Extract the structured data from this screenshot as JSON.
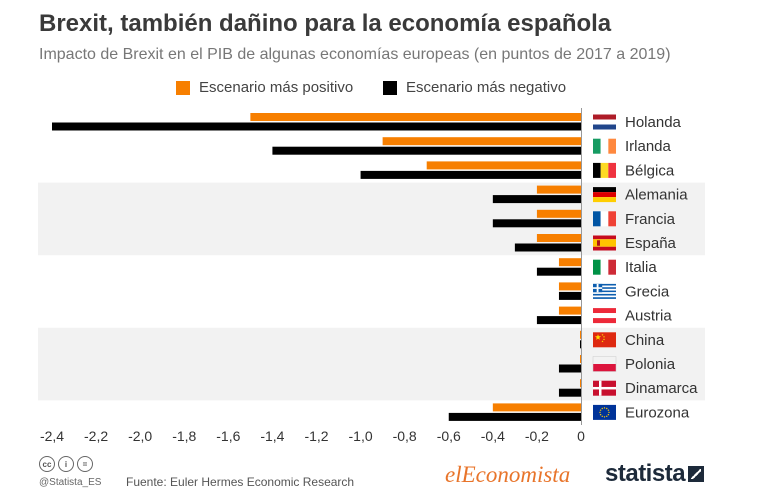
{
  "header": {
    "title": "Brexit, también dañino para la economía española",
    "subtitle": "Impacto de Brexit en el PIB de algunas economías europeas (en puntos de 2017 a 2019)"
  },
  "legend": {
    "positive_label": "Escenario más positivo",
    "negative_label": "Escenario más negativo"
  },
  "colors": {
    "positive": "#f77f00",
    "negative": "#000000",
    "band": "#f2f2f2"
  },
  "chart_data": {
    "type": "bar",
    "orientation": "horizontal",
    "categories": [
      "Holanda",
      "Irlanda",
      "Bélgica",
      "Alemania",
      "Francia",
      "España",
      "Italia",
      "Grecia",
      "Austria",
      "China",
      "Polonia",
      "Dinamarca",
      "Eurozona"
    ],
    "flags": [
      "nl",
      "ie",
      "be",
      "de",
      "fr",
      "es",
      "it",
      "gr",
      "at",
      "cn",
      "pl",
      "dk",
      "eu"
    ],
    "series": [
      {
        "name": "Escenario más positivo",
        "values": [
          -1.5,
          -0.9,
          -0.7,
          -0.2,
          -0.2,
          -0.2,
          -0.1,
          -0.1,
          -0.1,
          0.0,
          0.0,
          0.0,
          -0.4
        ]
      },
      {
        "name": "Escenario más negativo",
        "values": [
          -2.4,
          -1.4,
          -1.0,
          -0.4,
          -0.4,
          -0.3,
          -0.2,
          -0.1,
          -0.2,
          0.0,
          -0.1,
          -0.1,
          -0.6
        ]
      }
    ],
    "xlim": [
      -2.4,
      0
    ],
    "xticks": [
      "-2,4",
      "-2,2",
      "-2,0",
      "-1,8",
      "-1,6",
      "-1,4",
      "-1,2",
      "-1,0",
      "-0,8",
      "-0,6",
      "-0,4",
      "-0,2",
      "0"
    ],
    "xtick_values": [
      -2.4,
      -2.2,
      -2.0,
      -1.8,
      -1.6,
      -1.4,
      -1.2,
      -1.0,
      -0.8,
      -0.6,
      -0.4,
      -0.2,
      0
    ],
    "grid": false,
    "legend_position": "top"
  },
  "footer": {
    "source": "Fuente: Euler Hermes Economic Research",
    "handle": "@Statista_ES",
    "cc_icons": [
      "cc",
      "by",
      "nd"
    ],
    "logo_left": "elEconomista",
    "logo_right": "statista"
  }
}
